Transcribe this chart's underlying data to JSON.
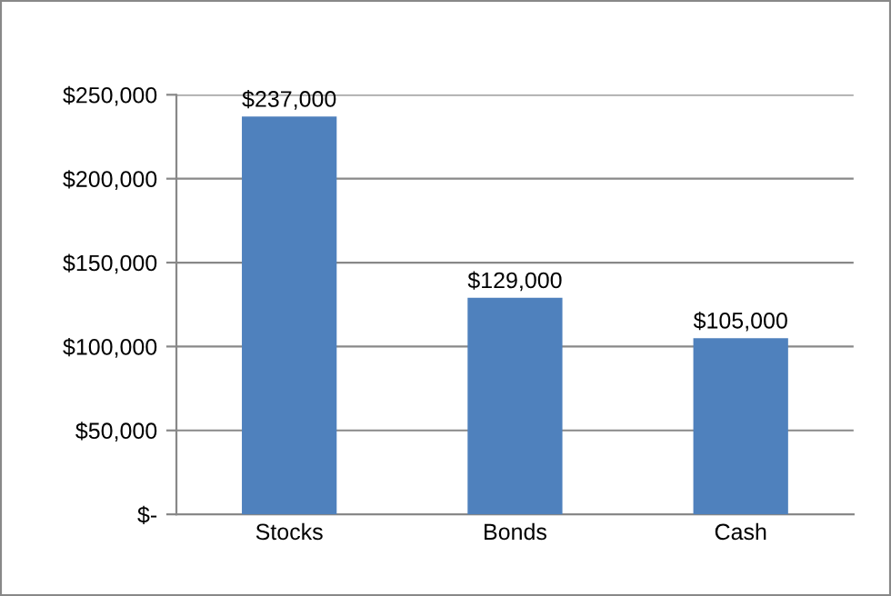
{
  "chart_data": {
    "type": "bar",
    "categories": [
      "Stocks",
      "Bonds",
      "Cash"
    ],
    "values": [
      237000,
      129000,
      105000
    ],
    "value_labels": [
      "$237,000",
      "$129,000",
      "$105,000"
    ],
    "color": "#4f81bd",
    "ylim": [
      0,
      250000
    ],
    "yticks": [
      {
        "value": 0,
        "label": "$-"
      },
      {
        "value": 50000,
        "label": "$50,000"
      },
      {
        "value": 100000,
        "label": "$100,000"
      },
      {
        "value": 150000,
        "label": "$150,000"
      },
      {
        "value": 200000,
        "label": "$200,000"
      },
      {
        "value": 250000,
        "label": "$250,000"
      }
    ],
    "grid": "y",
    "legend": false
  }
}
